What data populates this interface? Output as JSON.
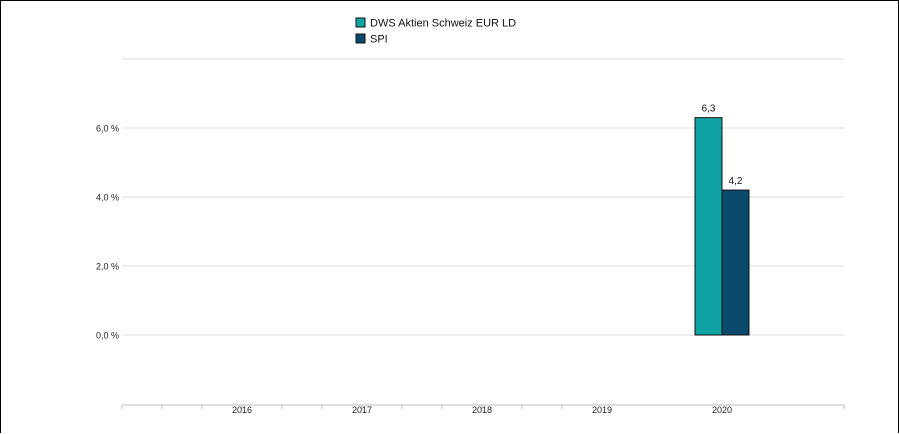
{
  "chart_data": {
    "type": "bar",
    "categories": [
      "2016",
      "2017",
      "2018",
      "2019",
      "2020"
    ],
    "series": [
      {
        "name": "DWS Aktien Schweiz  EUR LD",
        "color": "#10a3a3",
        "values": [
          null,
          null,
          null,
          null,
          6.3
        ],
        "labels": [
          "",
          "",
          "",
          "",
          "6,3"
        ]
      },
      {
        "name": "SPI",
        "color": "#0a4a6c",
        "values": [
          null,
          null,
          null,
          null,
          4.2
        ],
        "labels": [
          "",
          "",
          "",
          "",
          "4,2"
        ]
      }
    ],
    "yticks": [
      0,
      2,
      4,
      6
    ],
    "ytick_labels": [
      "0,0 %",
      "2,0 %",
      "4,0 %",
      "6,0 %"
    ],
    "ylim": [
      -2,
      8
    ],
    "grid": true,
    "legend": "top-center"
  }
}
